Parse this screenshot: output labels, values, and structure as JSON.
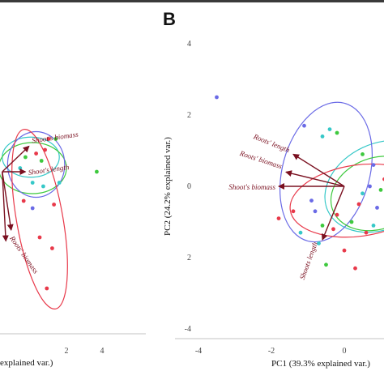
{
  "panel_label": "B",
  "chart_data": [
    {
      "type": "scatter",
      "panel": "A (cropped)",
      "title": "",
      "xlabel": "explained var.)",
      "ylabel": "",
      "x_ticks": [
        "2",
        "4"
      ],
      "group_colors": [
        "#e8394a",
        "#3ec93e",
        "#6a6ae6",
        "#36c8c8"
      ],
      "points": [
        {
          "x": -0.6,
          "y": 0.1,
          "g": 3
        },
        {
          "x": 0.3,
          "y": 0.5,
          "g": 0
        },
        {
          "x": 0.8,
          "y": 0.6,
          "g": 0
        },
        {
          "x": -0.3,
          "y": 0.4,
          "g": 1
        },
        {
          "x": 0.6,
          "y": 0.3,
          "g": 1
        },
        {
          "x": 0.1,
          "y": -0.3,
          "g": 3
        },
        {
          "x": 0.7,
          "y": -0.4,
          "g": 3
        },
        {
          "x": 1.6,
          "y": -0.3,
          "g": 3
        },
        {
          "x": 1.3,
          "y": -0.9,
          "g": 0
        },
        {
          "x": 1.2,
          "y": -2.1,
          "g": 0
        },
        {
          "x": 0.5,
          "y": -1.8,
          "g": 0
        },
        {
          "x": 0.9,
          "y": -3.2,
          "g": 0
        },
        {
          "x": 0.1,
          "y": -1.0,
          "g": 2
        },
        {
          "x": 1.0,
          "y": 0.9,
          "g": 0
        },
        {
          "x": 3.7,
          "y": 0.0,
          "g": 1
        },
        {
          "x": 1.4,
          "y": 0.9,
          "g": 1
        },
        {
          "x": -0.4,
          "y": -0.8,
          "g": 0
        }
      ],
      "ellipses": [
        {
          "cx": 0.0,
          "cy": 0.4,
          "rx": 1.6,
          "ry": 0.55,
          "g": 3
        },
        {
          "cx": 0.1,
          "cy": 0.1,
          "rx": 1.9,
          "ry": 0.7,
          "g": 1
        },
        {
          "cx": 0.3,
          "cy": 0.2,
          "rx": 1.6,
          "ry": 0.9,
          "g": 2
        },
        {
          "cx": 0.5,
          "cy": -1.3,
          "rx": 1.3,
          "ry": 2.5,
          "g": 0
        }
      ],
      "vectors": [
        {
          "label": "Shoot's biomass",
          "x": 1.5,
          "y": 0.7
        },
        {
          "label": "Shoot's length",
          "x": 1.3,
          "y": 0.0
        },
        {
          "label": "Roots' biomass",
          "x": 0.5,
          "y": -1.6
        },
        {
          "label": "",
          "x": 0.2,
          "y": -1.9
        }
      ]
    },
    {
      "type": "scatter",
      "panel": "B",
      "title": "",
      "xlabel": "PC1 (39.3% explained var.)",
      "ylabel": "PC2 (24.2% explained var.)",
      "xlim": [
        -4,
        2.2
      ],
      "ylim": [
        -4.2,
        4.2
      ],
      "x_ticks": [
        "-4",
        "-2",
        "0"
      ],
      "y_ticks": [
        "4",
        "2",
        "0",
        "2",
        "-4"
      ],
      "group_colors": [
        "#e8394a",
        "#3ec93e",
        "#6a6ae6",
        "#36c8c8"
      ],
      "points": [
        {
          "x": -3.5,
          "y": 2.5,
          "g": 2
        },
        {
          "x": -1.1,
          "y": 1.7,
          "g": 2
        },
        {
          "x": -0.6,
          "y": 1.4,
          "g": 3
        },
        {
          "x": -0.4,
          "y": 1.6,
          "g": 3
        },
        {
          "x": -0.2,
          "y": 1.5,
          "g": 1
        },
        {
          "x": 1.5,
          "y": 1.2,
          "g": 3
        },
        {
          "x": 1.8,
          "y": 1.1,
          "g": 3
        },
        {
          "x": 0.5,
          "y": 0.9,
          "g": 1
        },
        {
          "x": 0.8,
          "y": 0.6,
          "g": 2
        },
        {
          "x": 1.2,
          "y": 0.4,
          "g": 3
        },
        {
          "x": 1.6,
          "y": 0.3,
          "g": 1
        },
        {
          "x": 0.7,
          "y": 0.0,
          "g": 2
        },
        {
          "x": 1.0,
          "y": -0.1,
          "g": 1
        },
        {
          "x": 1.4,
          "y": -0.3,
          "g": 3
        },
        {
          "x": 1.8,
          "y": -0.2,
          "g": 1
        },
        {
          "x": 0.4,
          "y": -0.5,
          "g": 0
        },
        {
          "x": 0.9,
          "y": -0.6,
          "g": 2
        },
        {
          "x": 1.3,
          "y": -0.8,
          "g": 0
        },
        {
          "x": -0.2,
          "y": -0.8,
          "g": 0
        },
        {
          "x": -0.8,
          "y": -0.7,
          "g": 2
        },
        {
          "x": -1.4,
          "y": -0.7,
          "g": 0
        },
        {
          "x": -1.8,
          "y": -0.9,
          "g": 0
        },
        {
          "x": -0.6,
          "y": -1.1,
          "g": 1
        },
        {
          "x": 0.2,
          "y": -1.0,
          "g": 1
        },
        {
          "x": -1.2,
          "y": -1.3,
          "g": 3
        },
        {
          "x": -0.3,
          "y": -1.2,
          "g": 0
        },
        {
          "x": 0.6,
          "y": -1.3,
          "g": 0
        },
        {
          "x": -0.7,
          "y": -1.6,
          "g": 3
        },
        {
          "x": 0.0,
          "y": -1.8,
          "g": 0
        },
        {
          "x": -0.5,
          "y": -2.2,
          "g": 1
        },
        {
          "x": 0.3,
          "y": -2.3,
          "g": 0
        },
        {
          "x": 0.8,
          "y": -1.1,
          "g": 3
        },
        {
          "x": 1.6,
          "y": -0.6,
          "g": 2
        },
        {
          "x": 1.1,
          "y": 0.2,
          "g": 0
        },
        {
          "x": -0.9,
          "y": -0.4,
          "g": 2
        },
        {
          "x": 0.5,
          "y": -0.2,
          "g": 3
        },
        {
          "x": 1.9,
          "y": 0.6,
          "g": 1
        }
      ],
      "ellipses": [
        {
          "cx": 1.0,
          "cy": 0.0,
          "rx": 1.6,
          "ry": 1.2,
          "g": 3
        },
        {
          "cx": -0.5,
          "cy": 0.4,
          "rx": 1.2,
          "ry": 2.0,
          "g": 2
        },
        {
          "cx": 0.9,
          "cy": -0.2,
          "rx": 1.3,
          "ry": 1.0,
          "g": 1
        },
        {
          "cx": 0.4,
          "cy": -0.4,
          "rx": 1.9,
          "ry": 1.0,
          "g": 0
        }
      ],
      "vectors": [
        {
          "label": "Roots' length",
          "x": -1.4,
          "y": 0.9
        },
        {
          "label": "Roots' biomass",
          "x": -1.6,
          "y": 0.4
        },
        {
          "label": "Shoot's biomass",
          "x": -1.8,
          "y": 0.0
        },
        {
          "label": "Shoots length",
          "x": -0.6,
          "y": -1.5
        }
      ]
    }
  ]
}
